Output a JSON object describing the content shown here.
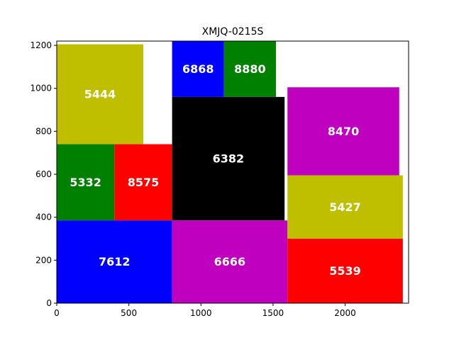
{
  "chart_data": {
    "type": "treemap",
    "title": "XMJQ-0215S",
    "xlim": [
      0,
      2440
    ],
    "ylim": [
      0,
      1220
    ],
    "xticks": [
      0,
      500,
      1000,
      1500,
      2000
    ],
    "yticks": [
      0,
      200,
      400,
      600,
      800,
      1000,
      1200
    ],
    "grid": false,
    "rects": [
      {
        "label": "5444",
        "x": 0,
        "y": 740,
        "w": 600,
        "h": 465,
        "color": "#bfbf00"
      },
      {
        "label": "5332",
        "x": 0,
        "y": 385,
        "w": 400,
        "h": 355,
        "color": "#008000"
      },
      {
        "label": "8575",
        "x": 400,
        "y": 385,
        "w": 400,
        "h": 355,
        "color": "#ff0000"
      },
      {
        "label": "7612",
        "x": 0,
        "y": 0,
        "w": 800,
        "h": 385,
        "color": "#0000ff"
      },
      {
        "label": "6868",
        "x": 800,
        "y": 960,
        "w": 360,
        "h": 260,
        "color": "#0000ff"
      },
      {
        "label": "8880",
        "x": 1160,
        "y": 960,
        "w": 360,
        "h": 260,
        "color": "#008000"
      },
      {
        "label": "6382",
        "x": 800,
        "y": 385,
        "w": 780,
        "h": 575,
        "color": "#000000"
      },
      {
        "label": "6666",
        "x": 800,
        "y": 0,
        "w": 800,
        "h": 385,
        "color": "#bf00bf"
      },
      {
        "label": "8470",
        "x": 1600,
        "y": 595,
        "w": 775,
        "h": 410,
        "color": "#bf00bf"
      },
      {
        "label": "5427",
        "x": 1600,
        "y": 300,
        "w": 800,
        "h": 295,
        "color": "#bfbf00"
      },
      {
        "label": "5539",
        "x": 1600,
        "y": 0,
        "w": 800,
        "h": 300,
        "color": "#ff0000"
      }
    ]
  }
}
